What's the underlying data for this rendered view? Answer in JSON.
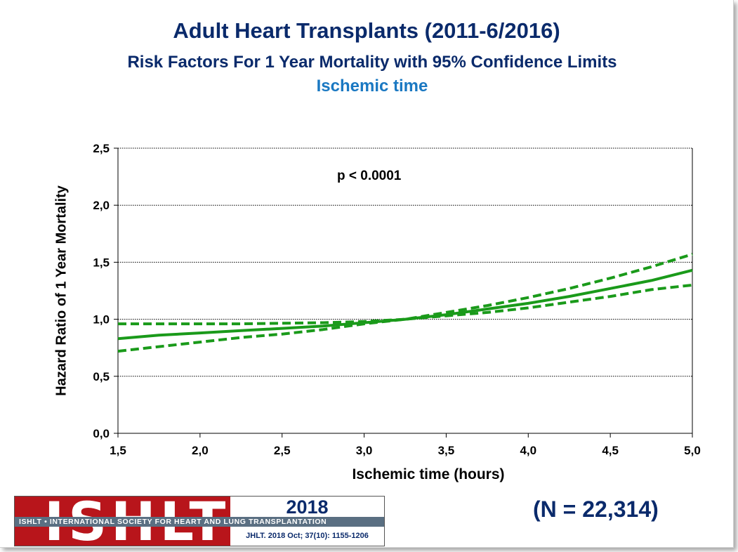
{
  "header": {
    "title": "Adult Heart Transplants (2011-6/2016)",
    "subtitle": "Risk Factors For 1 Year Mortality with 95% Confidence Limits",
    "subtitle2": "Ischemic time"
  },
  "annotation": {
    "p_value": "p < 0.0001"
  },
  "footer": {
    "n_label": "(N = 22,314)",
    "logo_letters": "ISHLT",
    "logo_band": "ISHLT • INTERNATIONAL SOCIETY FOR HEART AND LUNG TRANSPLANTATION",
    "year": "2018",
    "citation": "JHLT. 2018 Oct; 37(10): 1155-1206"
  },
  "colors": {
    "title": "#0a2a6b",
    "subtitle2": "#1a78c2",
    "series": "#1a9a1a",
    "logo_red": "#b8151b"
  },
  "chart_data": {
    "type": "line",
    "xlabel": "Ischemic time (hours)",
    "ylabel": "Hazard Ratio of 1 Year Mortality",
    "xlim": [
      1.5,
      5.0
    ],
    "ylim": [
      0.0,
      2.5
    ],
    "xticks": [
      "1,5",
      "2,0",
      "2,5",
      "3,0",
      "3,5",
      "4,0",
      "4,5",
      "5,0"
    ],
    "yticks": [
      "0,0",
      "0,5",
      "1,0",
      "1,5",
      "2,0",
      "2,5"
    ],
    "grid": "horizontal dotted",
    "x": [
      1.5,
      1.75,
      2.0,
      2.25,
      2.5,
      2.75,
      3.0,
      3.25,
      3.5,
      3.75,
      4.0,
      4.25,
      4.5,
      4.75,
      5.0
    ],
    "series": [
      {
        "style": "solid",
        "values": [
          0.83,
          0.86,
          0.88,
          0.9,
          0.92,
          0.94,
          0.97,
          1.0,
          1.04,
          1.09,
          1.14,
          1.2,
          1.27,
          1.34,
          1.43
        ]
      },
      {
        "style": "dashed",
        "values": [
          0.96,
          0.96,
          0.96,
          0.96,
          0.965,
          0.97,
          0.98,
          1.0,
          1.06,
          1.12,
          1.19,
          1.27,
          1.36,
          1.46,
          1.57
        ]
      },
      {
        "style": "dashed",
        "values": [
          0.72,
          0.76,
          0.8,
          0.84,
          0.87,
          0.91,
          0.96,
          1.0,
          1.03,
          1.06,
          1.1,
          1.15,
          1.2,
          1.26,
          1.3
        ]
      }
    ]
  }
}
